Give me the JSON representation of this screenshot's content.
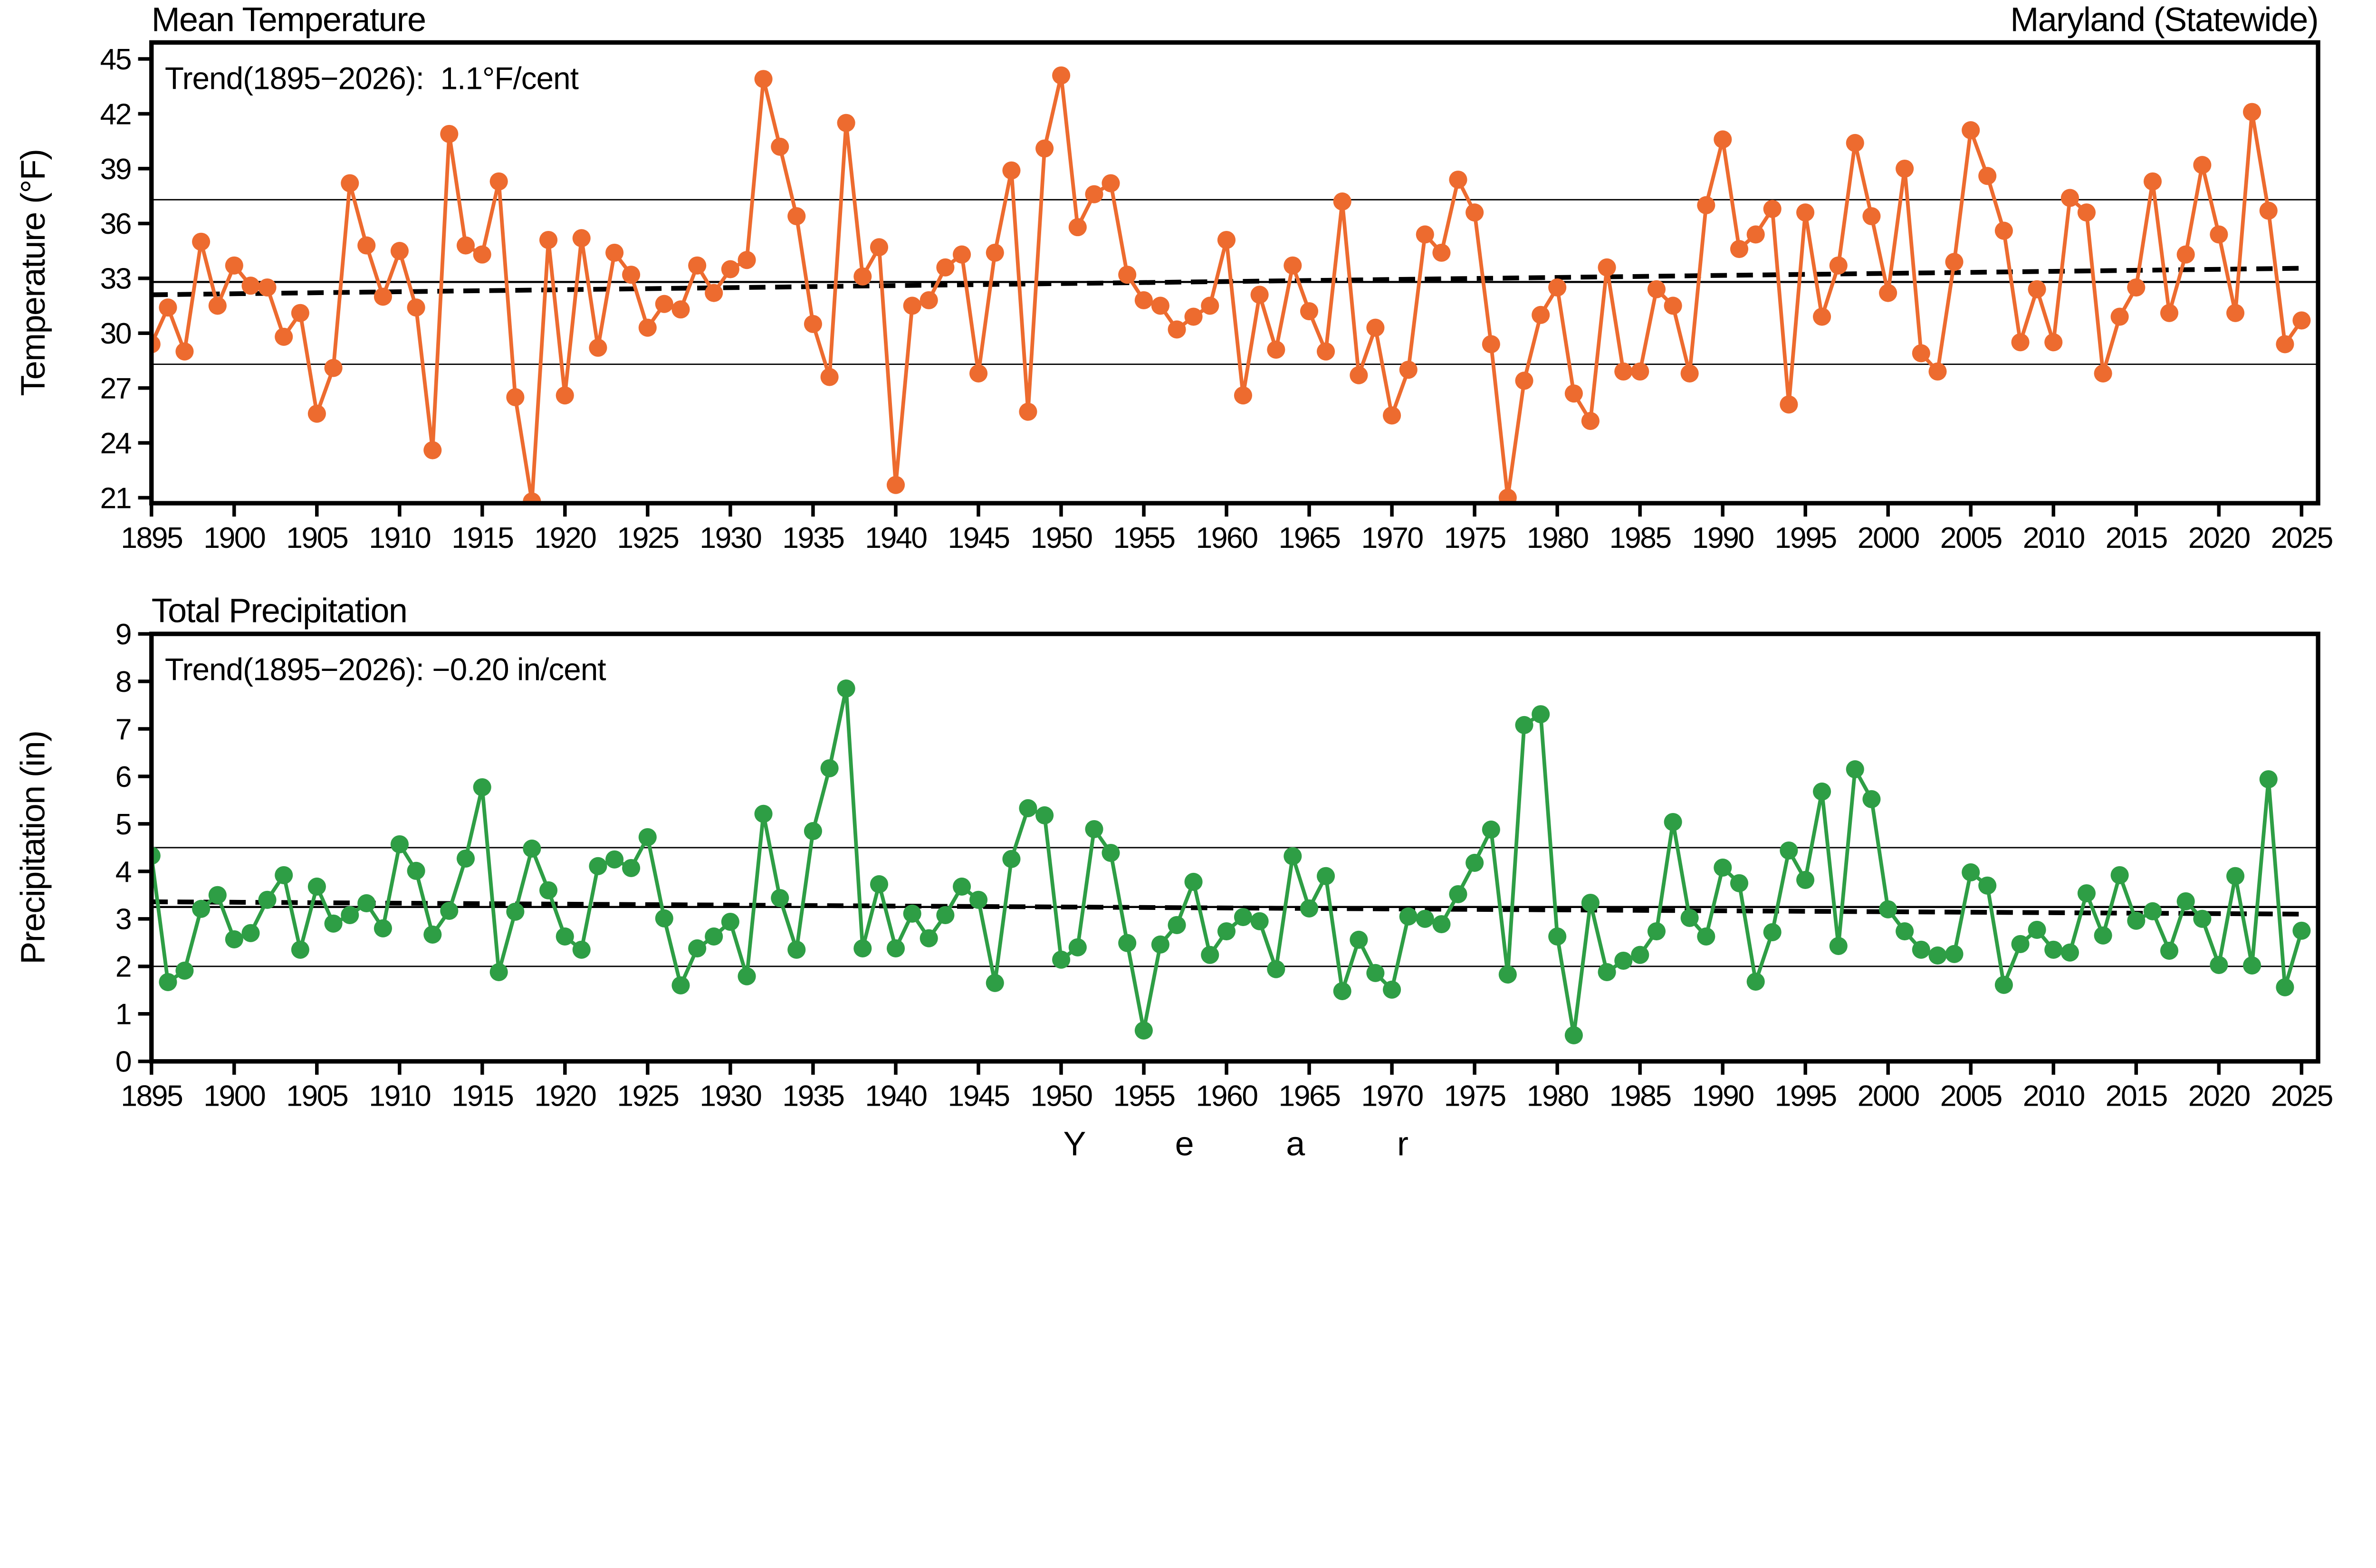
{
  "figure": {
    "region_label": "Maryland (Statewide)",
    "x_axis_label": "Year",
    "axis_color": "#000000",
    "background": "#ffffff"
  },
  "chart_data": [
    {
      "type": "line",
      "title": "Mean Temperature",
      "region": "Maryland (Statewide)",
      "trend_annotation": "Trend(1895−2026):  1.1°F/cent",
      "trend_rate": "1.1°F/cent",
      "xlabel": "Year",
      "ylabel": "Temperature (°F)",
      "x_start": 1895,
      "x_end": 2025,
      "x_tick_step": 5,
      "ylim": [
        20.7,
        45.9
      ],
      "yticks": [
        21,
        24,
        27,
        30,
        33,
        36,
        39,
        42,
        45
      ],
      "grid": "mean_and_stddev_lines",
      "legend_position": "none",
      "mean_line": 32.8,
      "stddev_gridlines": [
        28.3,
        37.3
      ],
      "trend_line": {
        "start_value": 32.1,
        "end_value": 33.55
      },
      "series_color": "#ED6B2F",
      "values": [
        29.4,
        31.4,
        29.0,
        35.0,
        31.5,
        33.7,
        32.6,
        32.5,
        29.8,
        31.1,
        25.6,
        28.1,
        38.2,
        34.8,
        32.0,
        34.5,
        31.4,
        23.6,
        40.9,
        34.8,
        34.3,
        38.3,
        26.5,
        20.8,
        35.1,
        26.6,
        35.2,
        29.2,
        34.4,
        33.2,
        30.3,
        31.6,
        31.3,
        33.7,
        32.2,
        33.5,
        34.0,
        43.9,
        40.2,
        36.4,
        30.5,
        27.6,
        41.5,
        33.1,
        34.7,
        21.7,
        31.5,
        31.8,
        33.6,
        34.3,
        27.8,
        34.4,
        38.9,
        25.7,
        40.1,
        44.1,
        35.8,
        37.6,
        38.2,
        33.2,
        31.8,
        31.5,
        30.2,
        30.9,
        31.5,
        35.1,
        26.6,
        32.1,
        29.1,
        33.7,
        31.2,
        29.0,
        37.2,
        27.7,
        30.3,
        25.5,
        28.0,
        35.4,
        34.4,
        38.4,
        36.6,
        29.4,
        21.0,
        27.4,
        31.0,
        32.5,
        26.7,
        25.2,
        33.6,
        27.9,
        27.9,
        32.4,
        31.5,
        27.8,
        37.0,
        40.6,
        34.6,
        35.4,
        36.8,
        26.1,
        36.6,
        30.9,
        33.7,
        40.4,
        36.4,
        32.2,
        39.0,
        28.9,
        27.9,
        33.9,
        41.1,
        38.6,
        35.6,
        29.5,
        32.4,
        29.5,
        37.4,
        36.6,
        27.8,
        30.9,
        32.5,
        38.3,
        31.1,
        34.3,
        39.2,
        35.4,
        31.1,
        42.1,
        36.7,
        29.4,
        30.7
      ]
    },
    {
      "type": "line",
      "title": "Total Precipitation",
      "trend_annotation": "Trend(1895−2026): −0.20 in/cent",
      "trend_rate": "−0.20 in/cent",
      "xlabel": "Year",
      "ylabel": "Precipitation (in)",
      "x_start": 1895,
      "x_end": 2025,
      "x_tick_step": 5,
      "ylim": [
        0,
        9
      ],
      "yticks": [
        0,
        1,
        2,
        3,
        4,
        5,
        6,
        7,
        8,
        9
      ],
      "grid": "mean_and_stddev_lines",
      "legend_position": "none",
      "mean_line": 3.25,
      "stddev_gridlines": [
        2.0,
        4.5
      ],
      "trend_line": {
        "start_value": 3.36,
        "end_value": 3.1
      },
      "series_color": "#2E9E45",
      "values": [
        4.33,
        1.67,
        1.91,
        3.21,
        3.5,
        2.57,
        2.7,
        3.4,
        3.92,
        2.35,
        3.68,
        2.9,
        3.08,
        3.33,
        2.8,
        4.57,
        4.01,
        2.67,
        3.17,
        4.27,
        5.77,
        1.88,
        3.15,
        4.48,
        3.6,
        2.63,
        2.35,
        4.11,
        4.25,
        4.07,
        4.72,
        3.01,
        1.6,
        2.38,
        2.63,
        2.94,
        1.79,
        5.21,
        3.44,
        2.35,
        4.85,
        6.17,
        7.85,
        2.38,
        3.73,
        2.38,
        3.11,
        2.59,
        3.08,
        3.68,
        3.4,
        1.65,
        4.26,
        5.33,
        5.18,
        2.14,
        2.4,
        4.89,
        4.39,
        2.49,
        0.65,
        2.46,
        2.87,
        3.78,
        2.24,
        2.74,
        3.04,
        2.95,
        1.94,
        4.32,
        3.22,
        3.9,
        1.48,
        2.56,
        1.86,
        1.51,
        3.05,
        3.0,
        2.89,
        3.52,
        4.18,
        4.88,
        1.83,
        7.08,
        7.31,
        2.63,
        0.55,
        3.34,
        1.88,
        2.12,
        2.24,
        2.74,
        5.04,
        3.02,
        2.63,
        4.08,
        3.75,
        1.68,
        2.72,
        4.44,
        3.82,
        5.68,
        2.43,
        6.15,
        5.52,
        3.2,
        2.74,
        2.35,
        2.23,
        2.26,
        3.98,
        3.7,
        1.61,
        2.47,
        2.77,
        2.35,
        2.29,
        3.54,
        2.65,
        3.92,
        2.96,
        3.16,
        2.33,
        3.37,
        3.0,
        2.03,
        3.9,
        2.02,
        5.94,
        1.56,
        2.75
      ]
    }
  ]
}
